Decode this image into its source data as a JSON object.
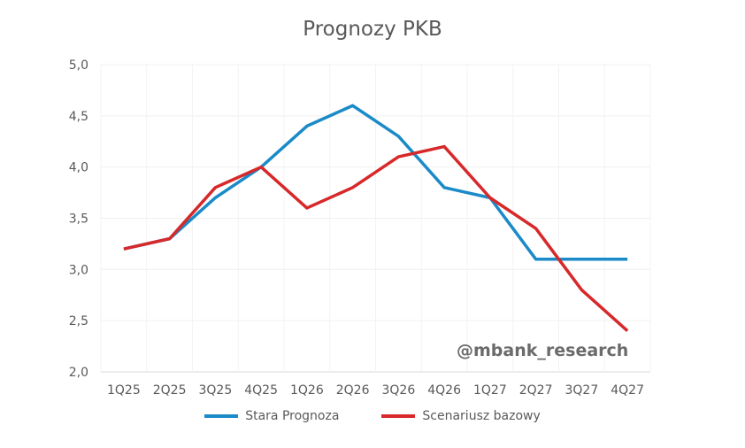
{
  "chart_data": {
    "type": "line",
    "title": "Prognozy PKB",
    "categories": [
      "1Q25",
      "2Q25",
      "3Q25",
      "4Q25",
      "1Q26",
      "2Q26",
      "3Q26",
      "4Q26",
      "1Q27",
      "2Q27",
      "3Q27",
      "4Q27"
    ],
    "series": [
      {
        "name": "Stara Prognoza",
        "color": "#1a8ac8",
        "values": [
          3.2,
          3.3,
          3.7,
          4.0,
          4.4,
          4.6,
          4.3,
          3.8,
          3.7,
          3.1,
          3.1,
          3.1
        ]
      },
      {
        "name": "Scenariusz bazowy",
        "color": "#d7282a",
        "values": [
          3.2,
          3.3,
          3.8,
          4.0,
          3.6,
          3.8,
          4.1,
          4.2,
          3.7,
          3.4,
          2.8,
          2.4
        ]
      }
    ],
    "ylim": [
      2.0,
      5.0
    ],
    "yticks": [
      "2,0",
      "2,5",
      "3,0",
      "3,5",
      "4,0",
      "4,5",
      "5,0"
    ],
    "xlabel": "",
    "ylabel": "",
    "grid": true,
    "legend": "bottom"
  },
  "watermark": "@mbank_research"
}
